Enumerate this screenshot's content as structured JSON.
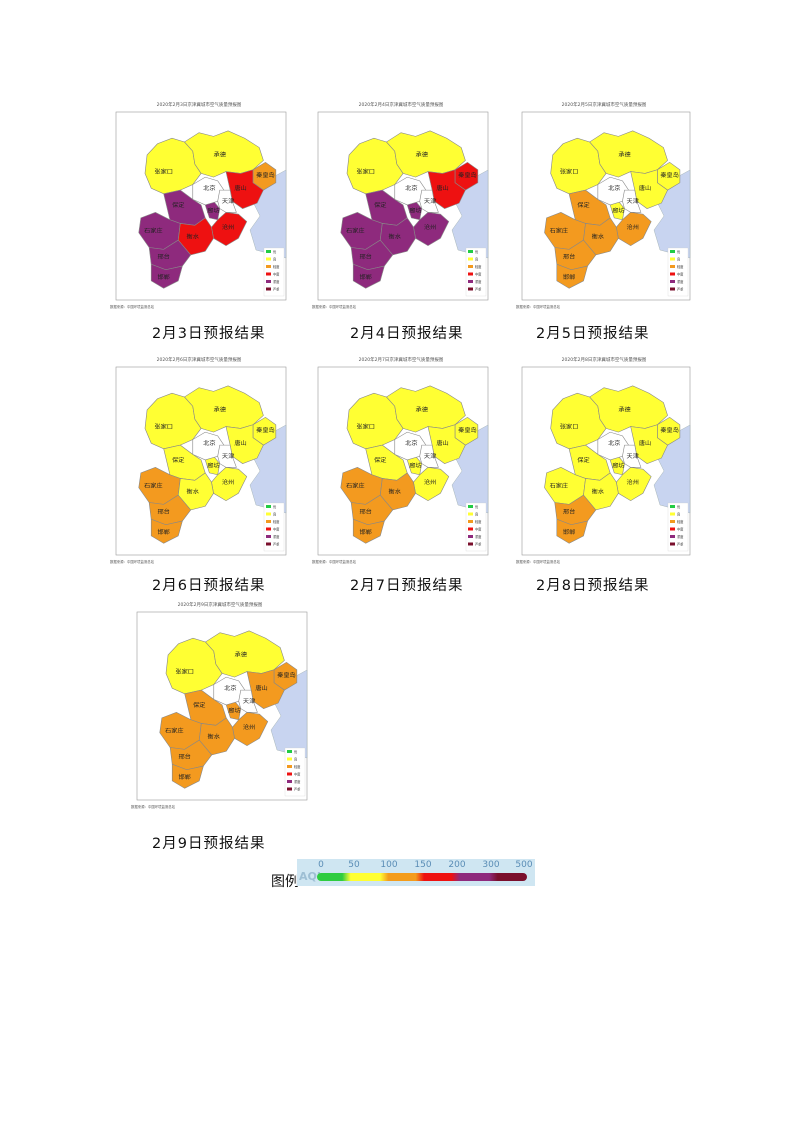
{
  "colors": {
    "good": "#22cc44",
    "moderate": "#ffff33",
    "light": "#f39a1f",
    "medium": "#ee1111",
    "heavy": "#8e2a7d",
    "severe": "#7a0f2c",
    "sea": "#c8d4f0",
    "none": "#ffffff"
  },
  "maps": [
    {
      "title": "2020年2月3日京津冀城市空气质量预报图",
      "source": "数据来源：中国环境监测总站",
      "caption": "2月3日预报结果",
      "regions": {
        "zhangjiakou": "moderate",
        "chengde": "moderate",
        "qinhuangdao": "light",
        "tangshan": "medium",
        "langfang": "heavy",
        "baoding": "heavy",
        "cangzhou": "medium",
        "shijiazhuang": "heavy",
        "hengshui": "medium",
        "xingtai": "heavy",
        "handan": "heavy"
      },
      "labels": [
        "张家口",
        "承德",
        "北京",
        "天津",
        "唐山",
        "秦皇岛",
        "保定",
        "廊坊",
        "沧州",
        "石家庄",
        "衡水",
        "邢台",
        "邯郸"
      ]
    },
    {
      "title": "2020年2月4日京津冀城市空气质量预报图",
      "source": "数据来源：中国环境监测总站",
      "caption": "2月4日预报结果",
      "regions": {
        "zhangjiakou": "moderate",
        "chengde": "moderate",
        "qinhuangdao": "medium",
        "tangshan": "medium",
        "langfang": "heavy",
        "baoding": "heavy",
        "cangzhou": "heavy",
        "shijiazhuang": "heavy",
        "hengshui": "heavy",
        "xingtai": "heavy",
        "handan": "heavy"
      },
      "labels": [
        "张家口",
        "承德",
        "北京",
        "天津",
        "唐山",
        "秦皇岛",
        "保定",
        "廊坊",
        "沧州",
        "石家庄",
        "衡水",
        "邢台",
        "邯郸"
      ]
    },
    {
      "title": "2020年2月5日京津冀城市空气质量预报图",
      "source": "数据来源：中国环境监测总站",
      "caption": "2月5日预报结果",
      "regions": {
        "zhangjiakou": "moderate",
        "chengde": "moderate",
        "qinhuangdao": "moderate",
        "tangshan": "moderate",
        "langfang": "moderate",
        "baoding": "light",
        "cangzhou": "light",
        "shijiazhuang": "light",
        "hengshui": "light",
        "xingtai": "light",
        "handan": "light"
      },
      "labels": [
        "张家口",
        "承德",
        "北京",
        "天津",
        "唐山",
        "秦皇岛",
        "保定",
        "廊坊",
        "沧州",
        "石家庄",
        "衡水",
        "邢台",
        "邯郸"
      ]
    },
    {
      "title": "2020年2月6日京津冀城市空气质量预报图",
      "source": "数据来源：中国环境监测总站",
      "caption": "2月6日预报结果",
      "regions": {
        "zhangjiakou": "moderate",
        "chengde": "moderate",
        "qinhuangdao": "moderate",
        "tangshan": "moderate",
        "langfang": "moderate",
        "baoding": "moderate",
        "cangzhou": "moderate",
        "shijiazhuang": "light",
        "hengshui": "moderate",
        "xingtai": "light",
        "handan": "light"
      },
      "labels": [
        "张家口",
        "承德",
        "北京",
        "天津",
        "唐山",
        "秦皇岛",
        "保定",
        "廊坊",
        "沧州",
        "石家庄",
        "衡水",
        "邢台",
        "邯郸"
      ]
    },
    {
      "title": "2020年2月7日京津冀城市空气质量预报图",
      "source": "数据来源：中国环境监测总站",
      "caption": "2月7日预报结果",
      "regions": {
        "zhangjiakou": "moderate",
        "chengde": "moderate",
        "qinhuangdao": "moderate",
        "tangshan": "moderate",
        "langfang": "moderate",
        "baoding": "moderate",
        "cangzhou": "moderate",
        "shijiazhuang": "light",
        "hengshui": "light",
        "xingtai": "light",
        "handan": "light"
      },
      "labels": [
        "张家口",
        "承德",
        "北京",
        "天津",
        "唐山",
        "秦皇岛",
        "保定",
        "廊坊",
        "沧州",
        "石家庄",
        "衡水",
        "邢台",
        "邯郸"
      ]
    },
    {
      "title": "2020年2月8日京津冀城市空气质量预报图",
      "source": "数据来源：中国环境监测总站",
      "caption": "2月8日预报结果",
      "regions": {
        "zhangjiakou": "moderate",
        "chengde": "moderate",
        "qinhuangdao": "moderate",
        "tangshan": "moderate",
        "langfang": "moderate",
        "baoding": "moderate",
        "cangzhou": "moderate",
        "shijiazhuang": "moderate",
        "hengshui": "moderate",
        "xingtai": "light",
        "handan": "light"
      },
      "labels": [
        "张家口",
        "承德",
        "北京",
        "天津",
        "唐山",
        "秦皇岛",
        "保定",
        "廊坊",
        "沧州",
        "石家庄",
        "衡水",
        "邢台",
        "邯郸"
      ]
    },
    {
      "title": "2020年2月9日京津冀城市空气质量预报图",
      "source": "数据来源：中国环境监测总站",
      "caption": "2月9日预报结果",
      "regions": {
        "zhangjiakou": "moderate",
        "chengde": "moderate",
        "qinhuangdao": "light",
        "tangshan": "light",
        "langfang": "light",
        "baoding": "light",
        "cangzhou": "light",
        "shijiazhuang": "light",
        "hengshui": "light",
        "xingtai": "light",
        "handan": "light"
      },
      "labels": [
        "张家口",
        "承德",
        "北京",
        "天津",
        "唐山",
        "秦皇岛",
        "保定",
        "廊坊",
        "沧州",
        "石家庄",
        "衡水",
        "邢台",
        "邯郸"
      ]
    }
  ],
  "map_legend_items": [
    "优",
    "良",
    "轻度",
    "中度",
    "重度",
    "严重"
  ],
  "legend": {
    "label": "图例",
    "aqi_text": "AQI",
    "ticks": [
      "0",
      "50",
      "100",
      "150",
      "200",
      "300",
      "500"
    ]
  }
}
